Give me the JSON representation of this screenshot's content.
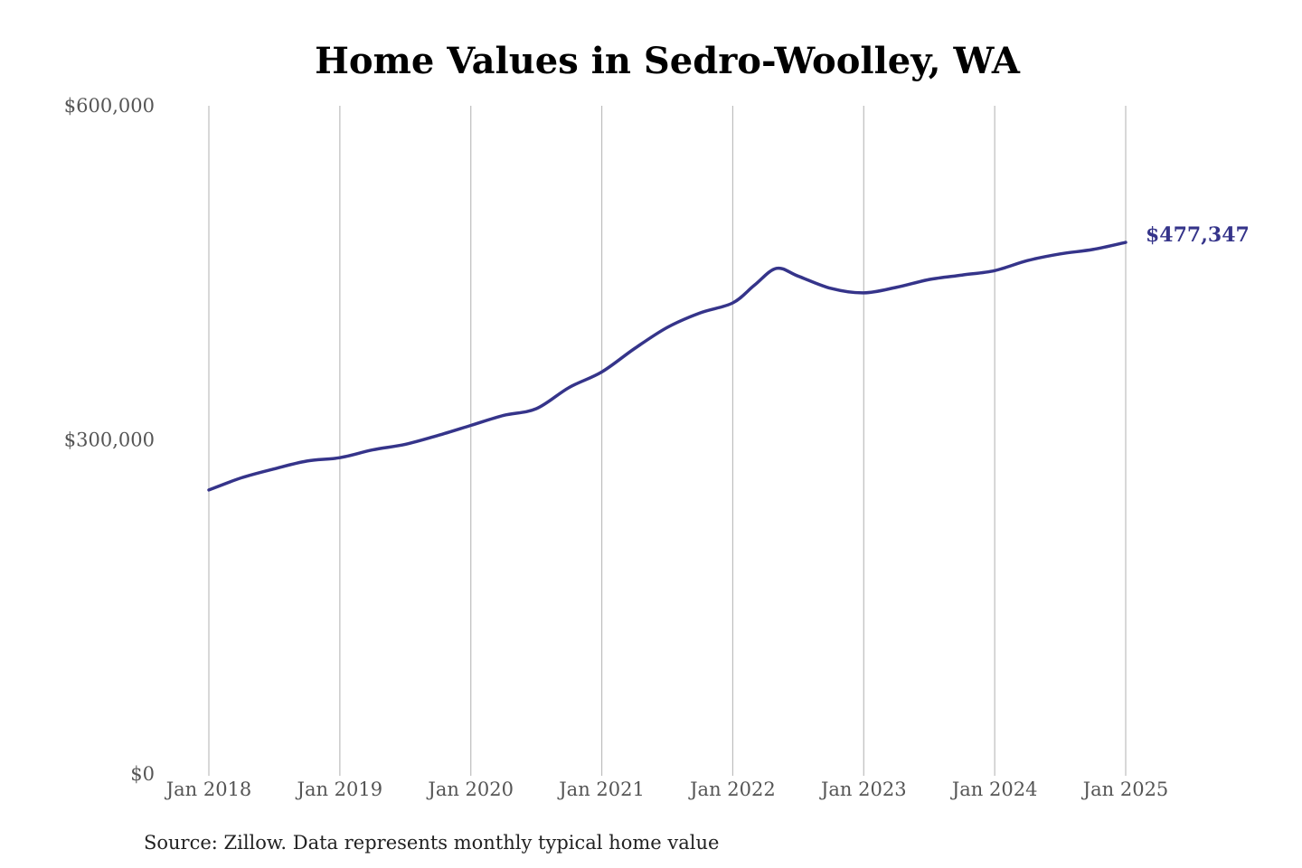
{
  "chart_data": {
    "type": "line",
    "title": "Home Values in Sedro-Woolley, WA",
    "xlabel": "",
    "ylabel": "",
    "ylim": [
      0,
      600000
    ],
    "y_ticks": [
      {
        "value": 0,
        "label": "$0"
      },
      {
        "value": 300000,
        "label": "$300,000"
      },
      {
        "value": 600000,
        "label": "$600,000"
      }
    ],
    "x_range": [
      "2018-01",
      "2025-01"
    ],
    "x_ticks": [
      {
        "date": "2018-01",
        "label": "Jan 2018"
      },
      {
        "date": "2019-01",
        "label": "Jan 2019"
      },
      {
        "date": "2020-01",
        "label": "Jan 2020"
      },
      {
        "date": "2021-01",
        "label": "Jan 2021"
      },
      {
        "date": "2022-01",
        "label": "Jan 2022"
      },
      {
        "date": "2023-01",
        "label": "Jan 2023"
      },
      {
        "date": "2024-01",
        "label": "Jan 2024"
      },
      {
        "date": "2025-01",
        "label": "Jan 2025"
      }
    ],
    "grid": "vertical",
    "series": [
      {
        "name": "",
        "color": "#35348a",
        "end_label": "$477,347",
        "x": [
          "2018-01",
          "2018-04",
          "2018-07",
          "2018-10",
          "2019-01",
          "2019-04",
          "2019-07",
          "2019-10",
          "2020-01",
          "2020-04",
          "2020-07",
          "2020-10",
          "2021-01",
          "2021-04",
          "2021-07",
          "2021-10",
          "2022-01",
          "2022-03",
          "2022-05",
          "2022-07",
          "2022-10",
          "2023-01",
          "2023-04",
          "2023-07",
          "2023-10",
          "2024-01",
          "2024-04",
          "2024-07",
          "2024-10",
          "2025-01"
        ],
        "values": [
          255000,
          266000,
          274000,
          281000,
          284000,
          291000,
          296000,
          304000,
          313000,
          322000,
          328000,
          347000,
          361000,
          382000,
          401000,
          414000,
          423000,
          439000,
          454000,
          447000,
          436000,
          432000,
          437000,
          444000,
          448000,
          452000,
          461000,
          467000,
          471000,
          477347
        ]
      }
    ],
    "source_note": "Source: Zillow. Data represents monthly typical home value"
  }
}
